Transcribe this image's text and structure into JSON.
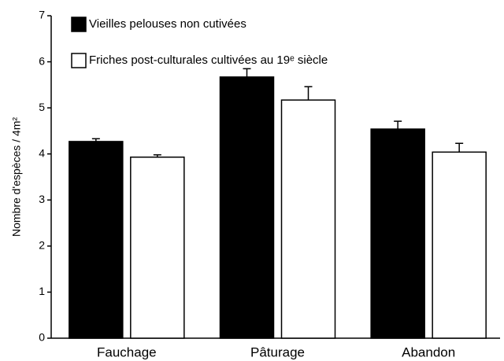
{
  "chart_data": {
    "type": "bar",
    "y_label": "Nombre d'espèces / 4m²",
    "categories": [
      "Fauchage",
      "Pâturage",
      "Abandon"
    ],
    "series": [
      {
        "name": "Vieilles pelouses non cutivées",
        "color": "#000000",
        "values": [
          4.27,
          5.67,
          4.54
        ],
        "errors": [
          0.06,
          0.18,
          0.17
        ]
      },
      {
        "name": "Friches post-culturales cultivées au 19ᵉ siècle",
        "color": "#ffffff",
        "values": [
          3.93,
          5.17,
          4.04
        ],
        "errors": [
          0.05,
          0.29,
          0.19
        ]
      }
    ],
    "ylim": [
      0,
      7
    ],
    "yticks": [
      0,
      1,
      2,
      3,
      4,
      5,
      6,
      7
    ],
    "grid": false,
    "legend": "top-left"
  }
}
